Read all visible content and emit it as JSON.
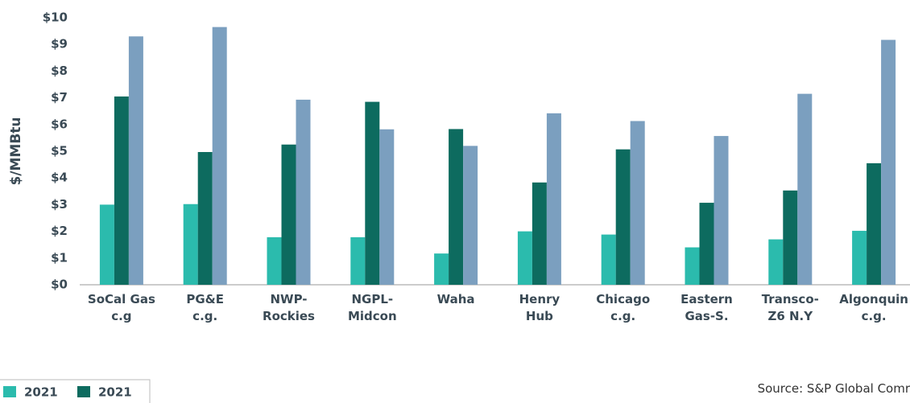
{
  "chart_data": {
    "type": "bar",
    "y_label": "$/MMBtu",
    "source": "Source: S&P Global Comr",
    "categories": [
      "SoCal Gas\nc.g",
      "PG&E\nc.g.",
      "NWP-\nRockies",
      "NGPL-\nMidcon",
      "Waha",
      "Henry\nHub",
      "Chicago\nc.g.",
      "Eastern\nGas-S.",
      "Transco-\nZ6 N.Y",
      "Algonquin\nc.g."
    ],
    "series": [
      {
        "name": "2021",
        "color": "#2bbbad",
        "values": [
          3.0,
          3.02,
          1.78,
          1.78,
          1.17,
          2.0,
          1.88,
          1.4,
          1.7,
          2.02
        ]
      },
      {
        "name": "2021",
        "color": "#0d6b5f",
        "values": [
          7.05,
          4.97,
          5.25,
          6.85,
          5.83,
          3.83,
          5.07,
          3.07,
          3.53,
          4.55
        ]
      },
      {
        "color": "#7b9fbf",
        "values": [
          9.3,
          9.65,
          6.93,
          5.82,
          5.2,
          6.42,
          6.13,
          5.57,
          7.15,
          9.17
        ]
      }
    ],
    "ylim": [
      0,
      10
    ],
    "yticks": [
      {
        "value": 0,
        "label": "$0"
      },
      {
        "value": 1,
        "label": "$1"
      },
      {
        "value": 2,
        "label": "$2"
      },
      {
        "value": 3,
        "label": "$3"
      },
      {
        "value": 4,
        "label": "$4"
      },
      {
        "value": 5,
        "label": "$5"
      },
      {
        "value": 6,
        "label": "$6"
      },
      {
        "value": 7,
        "label": "$7"
      },
      {
        "value": 8,
        "label": "$8"
      },
      {
        "value": 9,
        "label": "$9"
      },
      {
        "value": 10,
        "label": "$10"
      }
    ],
    "grid": false
  }
}
